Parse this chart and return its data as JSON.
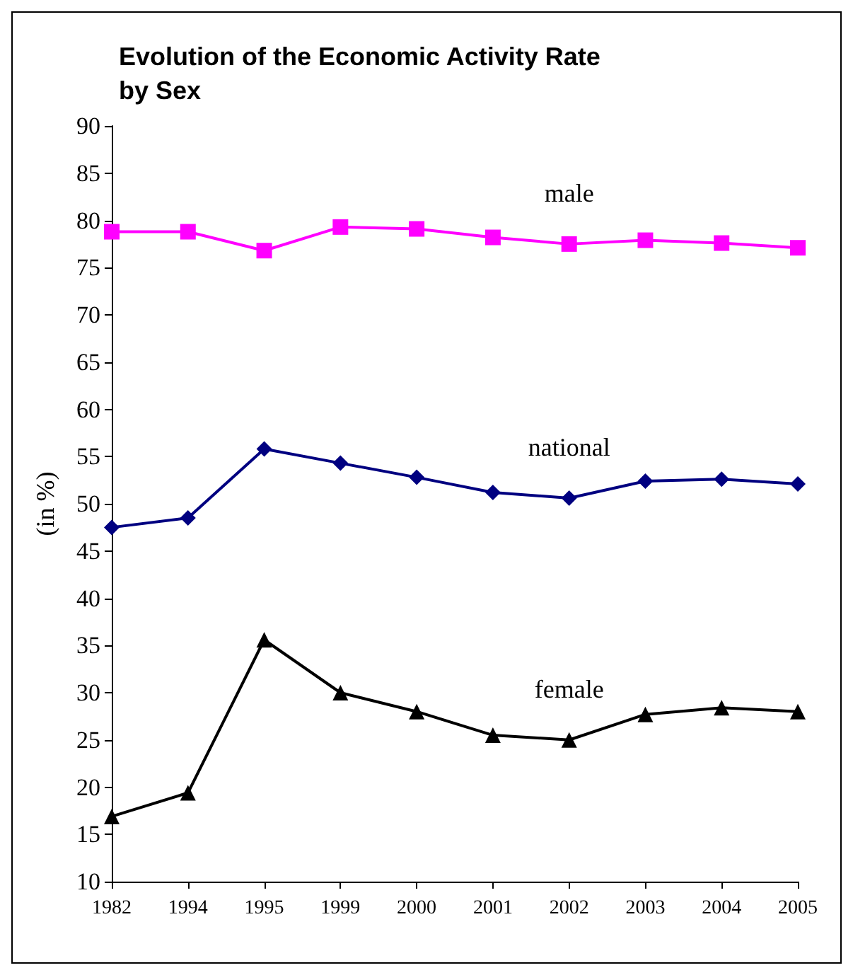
{
  "chart_data": {
    "type": "line",
    "title": "Evolution of the Economic Activity Rate\nby Sex",
    "ylabel": "(in %)",
    "categories": [
      "1982",
      "1994",
      "1995",
      "1999",
      "2000",
      "2001",
      "2002",
      "2003",
      "2004",
      "2005"
    ],
    "series": [
      {
        "name": "male",
        "color": "#ff00ff",
        "marker": "square",
        "values": [
          78.8,
          78.8,
          76.8,
          79.3,
          79.1,
          78.2,
          77.5,
          77.9,
          77.6,
          77.1
        ]
      },
      {
        "name": "national",
        "color": "#000080",
        "marker": "diamond",
        "values": [
          47.5,
          48.5,
          55.8,
          54.3,
          52.8,
          51.2,
          50.6,
          52.4,
          52.6,
          52.1
        ]
      },
      {
        "name": "female",
        "color": "#000000",
        "marker": "triangle",
        "values": [
          16.9,
          19.4,
          35.6,
          30.0,
          28.0,
          25.5,
          25.0,
          27.7,
          28.4,
          28.0
        ]
      }
    ],
    "ylim": [
      10,
      90
    ],
    "yticks": [
      10,
      15,
      20,
      25,
      30,
      35,
      40,
      45,
      50,
      55,
      60,
      65,
      70,
      75,
      80,
      85,
      90
    ],
    "grid": false,
    "legend": false
  }
}
